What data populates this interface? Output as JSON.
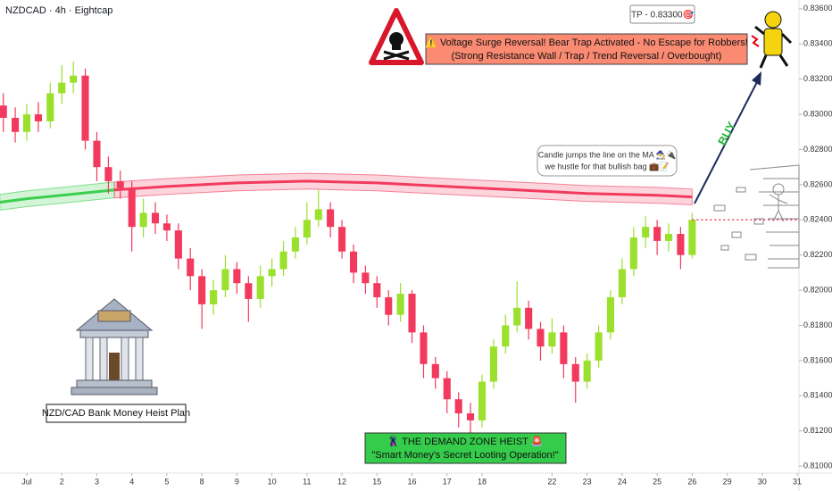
{
  "chart_data": {
    "type": "candlestick",
    "title": "NZDCAD · 4h · Eightcap",
    "up_color": "#9be02d",
    "down_color": "#f23a5e",
    "x": [
      -0.67,
      -0.33,
      0,
      0.33,
      0.67,
      1,
      1.33,
      1.67,
      2,
      2.33,
      2.67,
      3,
      3.33,
      3.67,
      4,
      4.33,
      4.67,
      5,
      5.33,
      5.67,
      6,
      6.33,
      6.67,
      7,
      7.33,
      7.67,
      8,
      8.33,
      8.67,
      9,
      9.33,
      9.67,
      10,
      10.33,
      10.67,
      11,
      11.33,
      11.67,
      12,
      12.33,
      12.67,
      13,
      13.33,
      13.67,
      14,
      14.33,
      14.67,
      15,
      15.33,
      15.67,
      16,
      16.33,
      16.67,
      17,
      17.33,
      17.67,
      18,
      18.33,
      18.67,
      19
    ],
    "open": [
      0.8305,
      0.8298,
      0.829,
      0.83,
      0.8296,
      0.8312,
      0.8318,
      0.8322,
      0.8285,
      0.827,
      0.8262,
      0.8258,
      0.8236,
      0.8244,
      0.8238,
      0.8234,
      0.8218,
      0.8208,
      0.8192,
      0.82,
      0.8212,
      0.8204,
      0.8195,
      0.8208,
      0.8212,
      0.8222,
      0.823,
      0.824,
      0.8246,
      0.8236,
      0.8222,
      0.821,
      0.8204,
      0.8196,
      0.8186,
      0.8198,
      0.8176,
      0.8158,
      0.815,
      0.8138,
      0.813,
      0.8126,
      0.8148,
      0.8168,
      0.818,
      0.819,
      0.8178,
      0.8168,
      0.8176,
      0.8158,
      0.8148,
      0.816,
      0.8176,
      0.8196,
      0.8212,
      0.823,
      0.8236,
      0.8228,
      0.8232,
      0.822
    ],
    "high": [
      0.8312,
      0.8304,
      0.8306,
      0.8307,
      0.8318,
      0.8328,
      0.833,
      0.8326,
      0.829,
      0.8276,
      0.8268,
      0.8262,
      0.8252,
      0.825,
      0.8243,
      0.8238,
      0.8224,
      0.8212,
      0.8206,
      0.822,
      0.8216,
      0.8208,
      0.8214,
      0.8218,
      0.8228,
      0.8236,
      0.825,
      0.8257,
      0.825,
      0.824,
      0.8226,
      0.8214,
      0.8208,
      0.82,
      0.8204,
      0.82,
      0.818,
      0.8162,
      0.8154,
      0.8142,
      0.8136,
      0.8152,
      0.8172,
      0.8186,
      0.8205,
      0.8194,
      0.8182,
      0.8184,
      0.818,
      0.8162,
      0.8164,
      0.818,
      0.82,
      0.8218,
      0.8236,
      0.8242,
      0.824,
      0.8238,
      0.8236,
      0.8244
    ],
    "low": [
      0.829,
      0.8284,
      0.8285,
      0.829,
      0.8292,
      0.8306,
      0.8312,
      0.828,
      0.8262,
      0.8255,
      0.8252,
      0.8222,
      0.823,
      0.8232,
      0.8228,
      0.8212,
      0.82,
      0.8178,
      0.8186,
      0.8196,
      0.8198,
      0.8182,
      0.819,
      0.8202,
      0.8208,
      0.8218,
      0.8226,
      0.8236,
      0.823,
      0.8218,
      0.8204,
      0.8198,
      0.819,
      0.818,
      0.8182,
      0.817,
      0.815,
      0.8144,
      0.813,
      0.8122,
      0.8118,
      0.8122,
      0.8144,
      0.8164,
      0.8176,
      0.8172,
      0.816,
      0.8164,
      0.815,
      0.8136,
      0.8144,
      0.8156,
      0.8172,
      0.8192,
      0.8208,
      0.8224,
      0.822,
      0.8222,
      0.8212,
      0.8218
    ],
    "close": [
      0.8298,
      0.829,
      0.83,
      0.8296,
      0.8312,
      0.8318,
      0.8322,
      0.8285,
      0.827,
      0.8262,
      0.8258,
      0.8236,
      0.8244,
      0.8238,
      0.8234,
      0.8218,
      0.8208,
      0.8192,
      0.82,
      0.8212,
      0.8204,
      0.8195,
      0.8208,
      0.8212,
      0.8222,
      0.823,
      0.824,
      0.8246,
      0.8236,
      0.8222,
      0.821,
      0.8204,
      0.8196,
      0.8186,
      0.8198,
      0.8176,
      0.8158,
      0.815,
      0.8138,
      0.813,
      0.8126,
      0.8148,
      0.8168,
      0.818,
      0.819,
      0.8178,
      0.8168,
      0.8176,
      0.8158,
      0.8148,
      0.816,
      0.8176,
      0.8196,
      0.8212,
      0.823,
      0.8236,
      0.8228,
      0.8232,
      0.822,
      0.824
    ],
    "moving_average": [
      {
        "color": "#3ccf4e",
        "x": [
          -0.77,
          0,
          1,
          2,
          2.5
        ],
        "values": [
          0.825,
          0.8252,
          0.8254,
          0.8256,
          0.8257
        ]
      },
      {
        "color": "#f23a5e",
        "x": [
          2.5,
          4,
          6,
          8,
          10,
          12,
          14,
          16,
          18,
          19
        ],
        "values": [
          0.8257,
          0.8259,
          0.8261,
          0.8262,
          0.8261,
          0.8259,
          0.8257,
          0.8255,
          0.8254,
          0.8253
        ]
      }
    ],
    "xlim": [
      -0.765,
      22.05
    ],
    "ylim": [
      0.8096,
      0.8365
    ],
    "xticks": [
      {
        "value": 0,
        "label": "Jul"
      },
      {
        "value": 1,
        "label": "2"
      },
      {
        "value": 2,
        "label": "3"
      },
      {
        "value": 3,
        "label": "4"
      },
      {
        "value": 4,
        "label": "5"
      },
      {
        "value": 5,
        "label": "8"
      },
      {
        "value": 6,
        "label": "9"
      },
      {
        "value": 7,
        "label": "10"
      },
      {
        "value": 8,
        "label": "11"
      },
      {
        "value": 9,
        "label": "12"
      },
      {
        "value": 10,
        "label": "15"
      },
      {
        "value": 11,
        "label": "16"
      },
      {
        "value": 12,
        "label": "17"
      },
      {
        "value": 13,
        "label": "18"
      },
      {
        "value": 15,
        "label": "22"
      },
      {
        "value": 16,
        "label": "23"
      },
      {
        "value": 17,
        "label": "24"
      },
      {
        "value": 18,
        "label": "25"
      },
      {
        "value": 19,
        "label": "26"
      },
      {
        "value": 20,
        "label": "29"
      },
      {
        "value": 21,
        "label": "30"
      },
      {
        "value": 22,
        "label": "31"
      }
    ],
    "yticks": [
      {
        "value": 0.81,
        "label": "0.81000"
      },
      {
        "value": 0.812,
        "label": "0.81200"
      },
      {
        "value": 0.814,
        "label": "0.81400"
      },
      {
        "value": 0.816,
        "label": "0.81600"
      },
      {
        "value": 0.818,
        "label": "0.81800"
      },
      {
        "value": 0.82,
        "label": "0.82000"
      },
      {
        "value": 0.822,
        "label": "0.82200"
      },
      {
        "value": 0.824,
        "label": "0.82400"
      },
      {
        "value": 0.826,
        "label": "0.82600"
      },
      {
        "value": 0.828,
        "label": "0.82800"
      },
      {
        "value": 0.83,
        "label": "0.83000"
      },
      {
        "value": 0.832,
        "label": "0.83200"
      },
      {
        "value": 0.834,
        "label": "0.83400"
      },
      {
        "value": 0.836,
        "label": "0.83600"
      }
    ],
    "annotations": {
      "warning": [
        "⚠️ Voltage Surge Reversal! Bear Trap Activated - No Escape for Robbers!",
        "(Strong Resistance Wall / Trap / Trend Reversal / Overbought)"
      ],
      "target": "TP - 0.83300🎯",
      "bubble": [
        "Candle jumps the line on the MA 🧙‍♂️🔌",
        "we hustle for that bullish bag 💼📝"
      ],
      "signal": "BUY",
      "plan": "NZD/CAD Bank Money Heist Plan",
      "zone": [
        "🦹 THE DEMAND ZONE HEIST 🚨",
        "\"Smart Money's Secret Looting Operation!\""
      ]
    }
  }
}
